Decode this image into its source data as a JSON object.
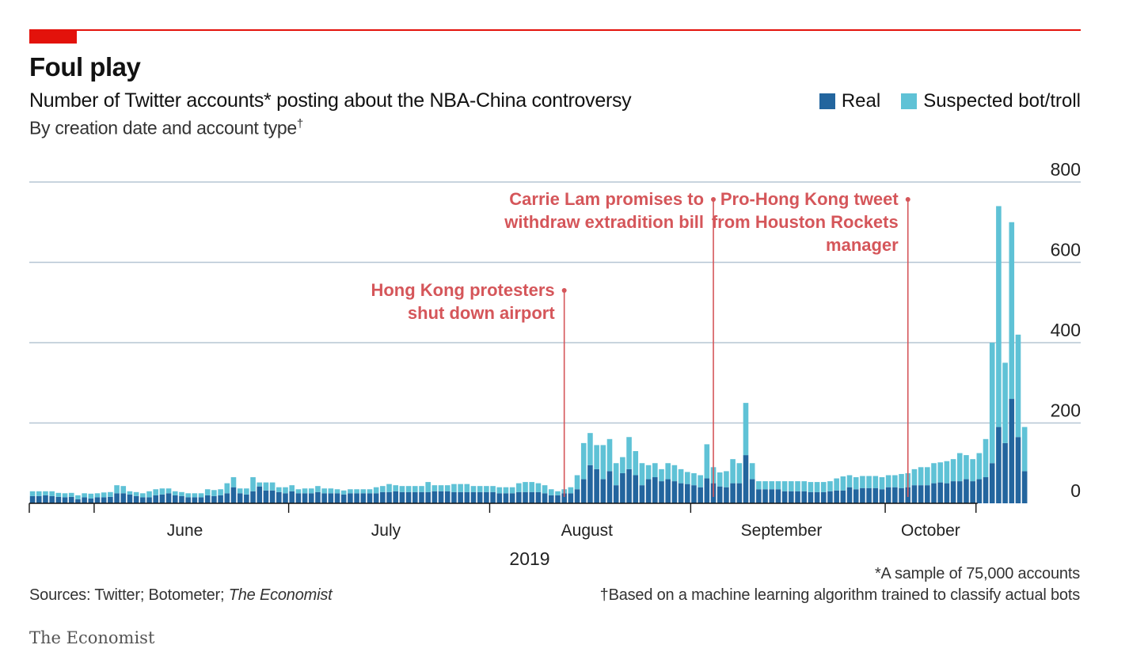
{
  "header": {
    "title": "Foul play",
    "subtitle": "Number of Twitter accounts* posting about the NBA-China controversy",
    "subtitle2": "By creation date and account type",
    "subtitle2_mark": "†"
  },
  "legend": {
    "real_label": "Real",
    "bot_label": "Suspected bot/troll"
  },
  "colors": {
    "accent": "#e3120b",
    "real": "#23659e",
    "bot": "#5fc2d6",
    "annotation": "#d5565a",
    "grid": "#b6c6d4"
  },
  "footer": {
    "sources_prefix": "Sources: Twitter; Botometer; ",
    "sources_italic": "The Economist",
    "note1": "*A sample of 75,000 accounts",
    "note2": "†Based on a machine learning algorithm trained to classify actual bots",
    "brand": "The Economist"
  },
  "chart_data": {
    "type": "bar",
    "stacked": true,
    "x_start": "2019-05-22",
    "x_end": "2019-10-15",
    "ylim": [
      0,
      800
    ],
    "yticks": [
      0,
      200,
      400,
      600,
      800
    ],
    "grid": true,
    "legend_position": "top-right",
    "month_labels": [
      {
        "label": "June",
        "date": "2019-06-15"
      },
      {
        "label": "July",
        "date": "2019-07-16"
      },
      {
        "label": "August",
        "date": "2019-08-16"
      },
      {
        "label": "September",
        "date": "2019-09-15"
      },
      {
        "label": "October",
        "date": "2019-10-08"
      }
    ],
    "month_boundaries": [
      "2019-06-01",
      "2019-07-01",
      "2019-08-01",
      "2019-09-01",
      "2019-10-01",
      "2019-10-15"
    ],
    "year_label": "2019",
    "series": [
      {
        "name": "Real",
        "values": [
          18,
          18,
          20,
          18,
          16,
          15,
          16,
          10,
          15,
          12,
          15,
          15,
          16,
          25,
          25,
          22,
          18,
          15,
          15,
          20,
          22,
          25,
          20,
          18,
          15,
          15,
          15,
          20,
          18,
          20,
          25,
          40,
          25,
          22,
          30,
          42,
          32,
          32,
          28,
          25,
          30,
          25,
          25,
          25,
          28,
          25,
          25,
          25,
          22,
          25,
          25,
          25,
          25,
          25,
          28,
          28,
          30,
          28,
          28,
          28,
          28,
          28,
          30,
          30,
          30,
          28,
          28,
          28,
          28,
          28,
          28,
          28,
          25,
          25,
          25,
          28,
          28,
          28,
          28,
          25,
          20,
          20,
          25,
          25,
          35,
          60,
          95,
          85,
          60,
          80,
          45,
          75,
          85,
          70,
          45,
          60,
          65,
          55,
          60,
          55,
          50,
          48,
          45,
          40,
          62,
          50,
          42,
          40,
          50,
          50,
          120,
          60,
          35,
          35,
          35,
          35,
          30,
          30,
          30,
          30,
          28,
          28,
          28,
          30,
          32,
          32,
          40,
          35,
          38,
          38,
          38,
          35,
          40,
          40,
          38,
          40,
          45,
          45,
          45,
          50,
          52,
          50,
          55,
          55,
          60,
          55,
          60,
          65,
          100,
          190,
          150,
          260,
          165,
          80
        ]
      },
      {
        "name": "Suspected bot/troll",
        "values": [
          12,
          12,
          10,
          12,
          10,
          10,
          10,
          10,
          10,
          12,
          10,
          12,
          12,
          20,
          18,
          8,
          10,
          10,
          15,
          15,
          15,
          12,
          10,
          10,
          10,
          10,
          10,
          15,
          15,
          15,
          25,
          25,
          12,
          15,
          35,
          10,
          20,
          20,
          12,
          15,
          15,
          10,
          12,
          12,
          15,
          12,
          12,
          10,
          10,
          10,
          10,
          10,
          10,
          15,
          15,
          20,
          15,
          15,
          15,
          15,
          15,
          25,
          15,
          15,
          15,
          20,
          20,
          20,
          15,
          15,
          15,
          15,
          15,
          15,
          15,
          22,
          25,
          25,
          22,
          20,
          15,
          10,
          10,
          15,
          35,
          90,
          80,
          60,
          85,
          80,
          55,
          40,
          80,
          60,
          55,
          35,
          35,
          30,
          40,
          40,
          35,
          30,
          30,
          30,
          85,
          40,
          35,
          40,
          60,
          50,
          130,
          40,
          20,
          20,
          20,
          20,
          25,
          25,
          25,
          25,
          25,
          25,
          25,
          25,
          30,
          35,
          30,
          30,
          30,
          30,
          30,
          30,
          30,
          30,
          35,
          35,
          40,
          45,
          45,
          50,
          50,
          55,
          55,
          70,
          60,
          55,
          65,
          95,
          300,
          550,
          200,
          440,
          255,
          110
        ]
      }
    ],
    "annotations": [
      {
        "lines": [
          "Hong Kong protesters",
          "shut down airport"
        ],
        "date": "2019-08-12"
      },
      {
        "lines": [
          "Carrie Lam promises to",
          "withdraw extradition bill"
        ],
        "date": "2019-09-04"
      },
      {
        "lines": [
          "Pro-Hong Kong tweet",
          "from Houston Rockets",
          "manager"
        ],
        "date": "2019-10-04"
      }
    ]
  }
}
